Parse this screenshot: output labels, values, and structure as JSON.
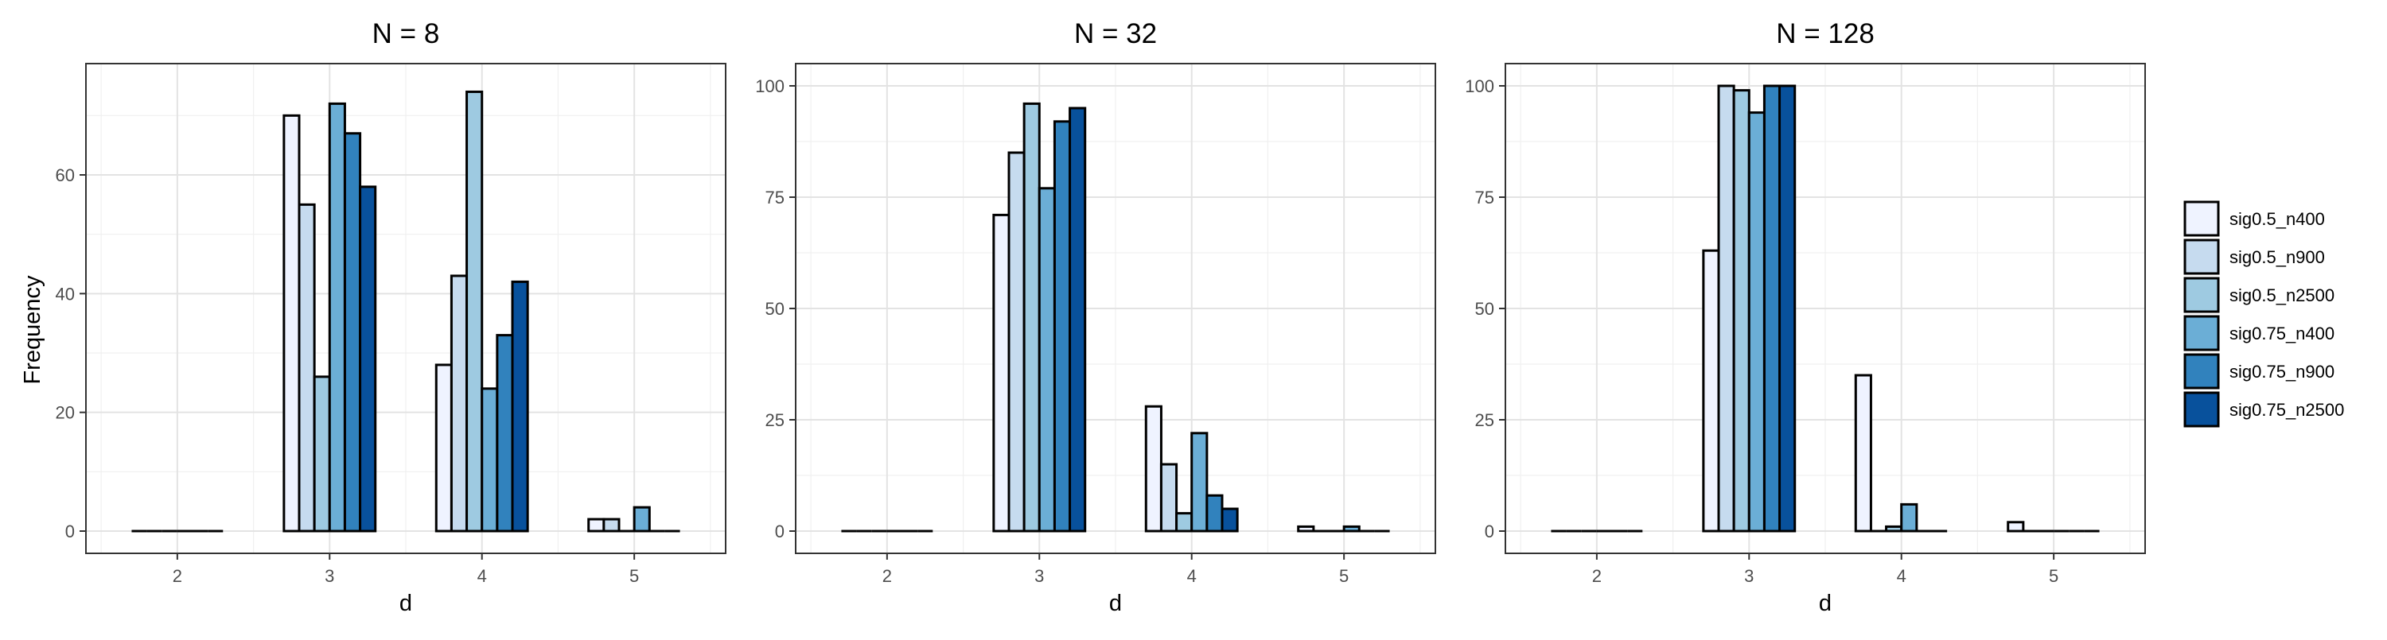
{
  "legend": {
    "placement": "right",
    "entries": [
      {
        "name": "sig0.5_n400",
        "color": "#EFF3FF"
      },
      {
        "name": "sig0.5_n900",
        "color": "#C6DBEF"
      },
      {
        "name": "sig0.5_n2500",
        "color": "#9ECAE1"
      },
      {
        "name": "sig0.75_n400",
        "color": "#6BAED6"
      },
      {
        "name": "sig0.75_n900",
        "color": "#3182BD"
      },
      {
        "name": "sig0.75_n2500",
        "color": "#08519C"
      }
    ]
  },
  "ylabel": "Frequency",
  "chart_data": [
    {
      "type": "bar",
      "title": "N = 8",
      "xlabel": "d",
      "ylabel": "Frequency",
      "categories": [
        "2",
        "3",
        "4",
        "5"
      ],
      "ylim": [
        0,
        75
      ],
      "yticks": [
        0,
        20,
        40,
        60
      ],
      "grid": true,
      "series": [
        {
          "name": "sig0.5_n400",
          "values": [
            0,
            70,
            28,
            2
          ]
        },
        {
          "name": "sig0.5_n900",
          "values": [
            0,
            55,
            43,
            2
          ]
        },
        {
          "name": "sig0.5_n2500",
          "values": [
            0,
            26,
            74,
            0
          ]
        },
        {
          "name": "sig0.75_n400",
          "values": [
            0,
            72,
            24,
            4
          ]
        },
        {
          "name": "sig0.75_n900",
          "values": [
            0,
            67,
            33,
            0
          ]
        },
        {
          "name": "sig0.75_n2500",
          "values": [
            0,
            58,
            42,
            0
          ]
        }
      ]
    },
    {
      "type": "bar",
      "title": "N = 32",
      "xlabel": "d",
      "ylabel": "",
      "categories": [
        "2",
        "3",
        "4",
        "5"
      ],
      "ylim": [
        0,
        100
      ],
      "yticks": [
        0,
        25,
        50,
        75,
        100
      ],
      "grid": true,
      "series": [
        {
          "name": "sig0.5_n400",
          "values": [
            0,
            71,
            28,
            1
          ]
        },
        {
          "name": "sig0.5_n900",
          "values": [
            0,
            85,
            15,
            0
          ]
        },
        {
          "name": "sig0.5_n2500",
          "values": [
            0,
            96,
            4,
            0
          ]
        },
        {
          "name": "sig0.75_n400",
          "values": [
            0,
            77,
            22,
            1
          ]
        },
        {
          "name": "sig0.75_n900",
          "values": [
            0,
            92,
            8,
            0
          ]
        },
        {
          "name": "sig0.75_n2500",
          "values": [
            0,
            95,
            5,
            0
          ]
        }
      ]
    },
    {
      "type": "bar",
      "title": "N = 128",
      "xlabel": "d",
      "ylabel": "",
      "categories": [
        "2",
        "3",
        "4",
        "5"
      ],
      "ylim": [
        0,
        100
      ],
      "yticks": [
        0,
        25,
        50,
        75,
        100
      ],
      "grid": true,
      "series": [
        {
          "name": "sig0.5_n400",
          "values": [
            0,
            63,
            35,
            2
          ]
        },
        {
          "name": "sig0.5_n900",
          "values": [
            0,
            100,
            0,
            0
          ]
        },
        {
          "name": "sig0.5_n2500",
          "values": [
            0,
            99,
            1,
            0
          ]
        },
        {
          "name": "sig0.75_n400",
          "values": [
            0,
            94,
            6,
            0
          ]
        },
        {
          "name": "sig0.75_n900",
          "values": [
            0,
            100,
            0,
            0
          ]
        },
        {
          "name": "sig0.75_n2500",
          "values": [
            0,
            100,
            0,
            0
          ]
        }
      ]
    }
  ]
}
